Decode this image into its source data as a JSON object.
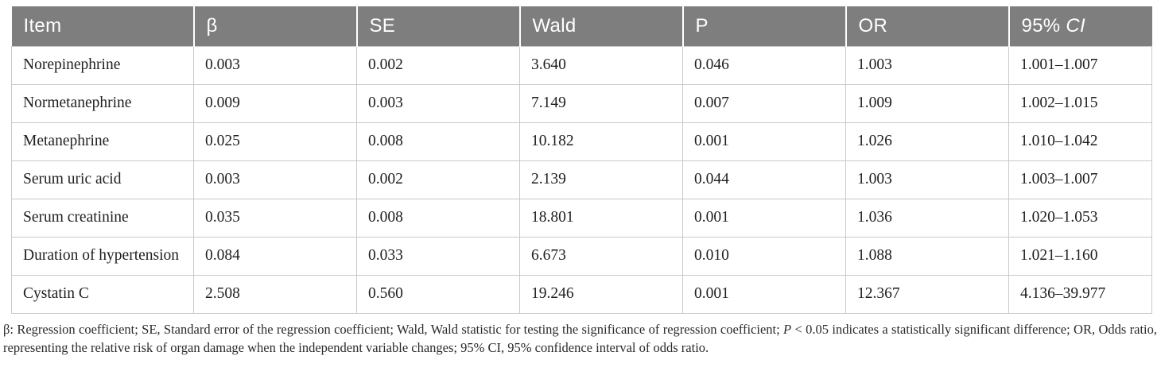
{
  "theme": {
    "header_bg": "#7e7e7e",
    "header_text": "#ffffff",
    "border_color": "#c9c9c9",
    "body_text": "#1f1f1f",
    "footnote_text": "#2b2b2b",
    "row_bg": "#ffffff"
  },
  "table": {
    "columns": [
      {
        "key": "item",
        "label": "Item"
      },
      {
        "key": "beta",
        "label": "β"
      },
      {
        "key": "se",
        "label": "SE"
      },
      {
        "key": "wald",
        "label": "Wald"
      },
      {
        "key": "p",
        "label": "P"
      },
      {
        "key": "or",
        "label": "OR"
      },
      {
        "key": "ci",
        "label": "95% ",
        "label_italic": "CI"
      }
    ],
    "rows": [
      [
        "Norepinephrine",
        "0.003",
        "0.002",
        "3.640",
        "0.046",
        "1.003",
        "1.001–1.007"
      ],
      [
        "Normetanephrine",
        "0.009",
        "0.003",
        "7.149",
        "0.007",
        "1.009",
        "1.002–1.015"
      ],
      [
        "Metanephrine",
        "0.025",
        "0.008",
        "10.182",
        "0.001",
        "1.026",
        "1.010–1.042"
      ],
      [
        "Serum uric acid",
        "0.003",
        "0.002",
        "2.139",
        "0.044",
        "1.003",
        "1.003–1.007"
      ],
      [
        "Serum creatinine",
        "0.035",
        "0.008",
        "18.801",
        "0.001",
        "1.036",
        "1.020–1.053"
      ],
      [
        "Duration of hypertension",
        "0.084",
        "0.033",
        "6.673",
        "0.010",
        "1.088",
        "1.021–1.160"
      ],
      [
        "Cystatin C",
        "2.508",
        "0.560",
        "19.246",
        "0.001",
        "12.367",
        "4.136–39.977"
      ]
    ]
  },
  "footnote": {
    "segments": [
      {
        "text": "β: Regression coefficient; SE, Standard error of the regression coefficient; Wald, Wald statistic for testing the significance of regression coefficient; ",
        "italic": false
      },
      {
        "text": "P",
        "italic": true
      },
      {
        "text": " < 0.05 indicates a statistically significant difference; OR, Odds ratio, representing the relative risk of organ damage when the independent variable changes; 95% CI, 95% confidence interval of odds ratio.",
        "italic": false
      }
    ]
  }
}
